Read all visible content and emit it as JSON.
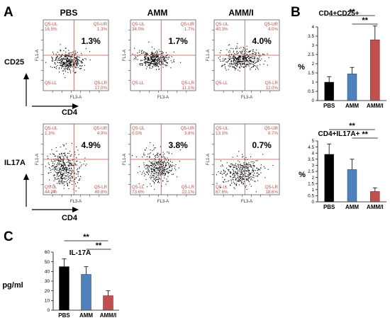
{
  "panel_labels": {
    "a": "A",
    "b": "B",
    "c": "C"
  },
  "flow": {
    "columns": [
      "PBS",
      "AMM",
      "AMM/I"
    ],
    "row_labels": [
      "CD25",
      "IL17A"
    ],
    "x_marker_label": "CD4",
    "axis_x_label": "FL3-A",
    "axis_y_label": "FL1-A",
    "quadrant_names": [
      "Q5-UL",
      "Q5-UR",
      "Q5-LL",
      "Q5-LR"
    ],
    "rows": [
      {
        "name": "CD25",
        "plots": [
          {
            "big": "1.3%",
            "ul": "16.5%",
            "ur": "1.3%",
            "ll": "",
            "lr": "17.0%"
          },
          {
            "big": "1.7%",
            "ul": "34.0%",
            "ur": "1.7%",
            "ll": "",
            "lr": "11.1%"
          },
          {
            "big": "4.0%",
            "ul": "40.3%",
            "ur": "4.0%",
            "ll": "",
            "lr": "12.0%"
          }
        ]
      },
      {
        "name": "IL17A",
        "plots": [
          {
            "big": "4.9%",
            "ul": "1.3%",
            "ur": "4.9%",
            "ll": "44.0%",
            "lr": "49.8%"
          },
          {
            "big": "3.8%",
            "ul": "0.5%",
            "ur": "3.8%",
            "ll": "73.6%",
            "lr": "22.1%"
          },
          {
            "big": "0.7%",
            "ul": "13.1%",
            "ur": "0.7%",
            "ll": "67.6%",
            "lr": "18.6%"
          }
        ]
      }
    ]
  },
  "chart_data": [
    {
      "panel": "B",
      "type": "bar",
      "title": "CD4+CD25+",
      "ylabel": "%",
      "categories": [
        "PBS",
        "AMM",
        "AMM/I"
      ],
      "values": [
        1.0,
        1.45,
        3.3
      ],
      "errors": [
        0.3,
        0.35,
        0.75
      ],
      "colors": [
        "#000000",
        "#4f81bd",
        "#c0504d"
      ],
      "ylim": [
        0,
        4
      ],
      "yticks": [
        "0",
        "0.5",
        "1",
        "1.5",
        "2",
        "2.5",
        "3",
        "3.5",
        "4"
      ],
      "significance": [
        "**",
        "**"
      ]
    },
    {
      "panel": "B",
      "type": "bar",
      "title": "CD4+IL17A+",
      "ylabel": "%",
      "categories": [
        "PBS",
        "AMM",
        "AMM/I"
      ],
      "values": [
        3.9,
        2.65,
        0.85
      ],
      "errors": [
        0.85,
        0.85,
        0.3
      ],
      "colors": [
        "#000000",
        "#4f81bd",
        "#c0504d"
      ],
      "ylim": [
        0,
        5
      ],
      "yticks": [
        "0",
        "0.5",
        "1",
        "1.5",
        "2",
        "2.5",
        "3",
        "3.5",
        "4",
        "4.5",
        "5"
      ],
      "significance": [
        "**",
        "**"
      ]
    },
    {
      "panel": "C",
      "type": "bar",
      "title": "IL-17A",
      "ylabel": "pg/ml",
      "categories": [
        "PBS",
        "AMM",
        "AMM/I"
      ],
      "values": [
        45,
        37,
        15
      ],
      "errors": [
        8,
        8,
        5
      ],
      "colors": [
        "#000000",
        "#4f81bd",
        "#c0504d"
      ],
      "ylim": [
        0,
        60
      ],
      "yticks": [
        "0",
        "10",
        "20",
        "30",
        "40",
        "50",
        "60"
      ],
      "significance": [
        "**",
        "**"
      ]
    }
  ]
}
